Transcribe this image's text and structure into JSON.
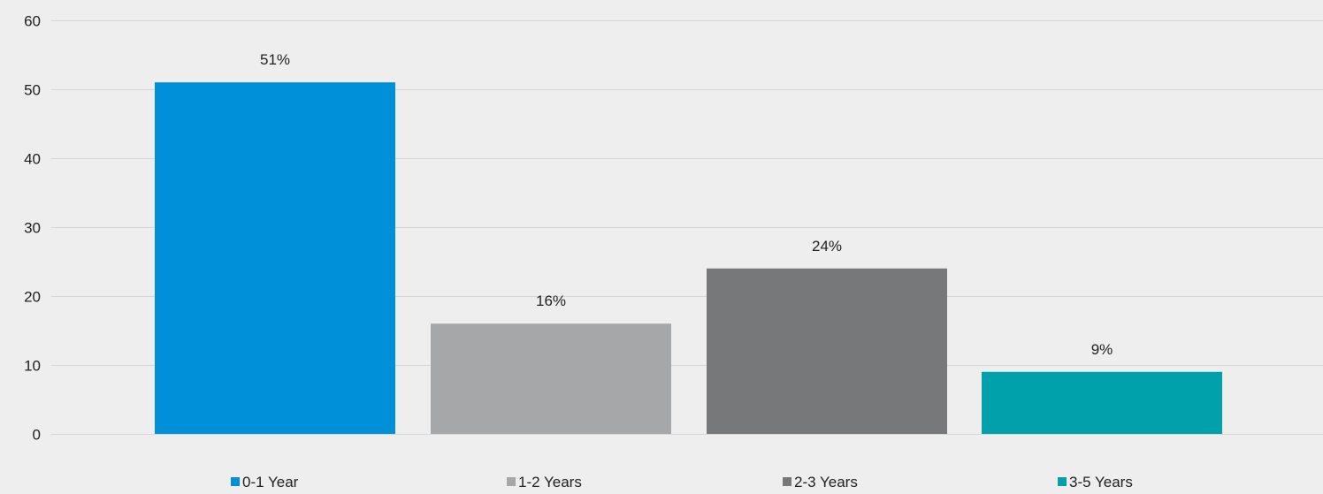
{
  "chart_data": {
    "type": "bar",
    "title": "",
    "xlabel": "",
    "ylabel": "",
    "categories": [
      "0-1 Year",
      "1-2 Years",
      "2-3 Years",
      "3-5 Years"
    ],
    "values": [
      51,
      16,
      24,
      9
    ],
    "data_labels": [
      "51%",
      "16%",
      "24%",
      "9%"
    ],
    "colors": [
      "#008fd9",
      "#a6a7a8",
      "#76787a",
      "#00a1ab"
    ],
    "ylim": [
      0,
      60
    ],
    "y_ticks": [
      0,
      10,
      20,
      30,
      40,
      50,
      60
    ],
    "grid": true,
    "legend": {
      "position": "bottom",
      "entries": [
        "0-1 Year",
        "1-2 Years",
        "2-3 Years",
        "3-5 Years"
      ]
    },
    "background_color": "#edeeed",
    "gridline_color": "#d6d7d6",
    "text_color": "#222222"
  }
}
